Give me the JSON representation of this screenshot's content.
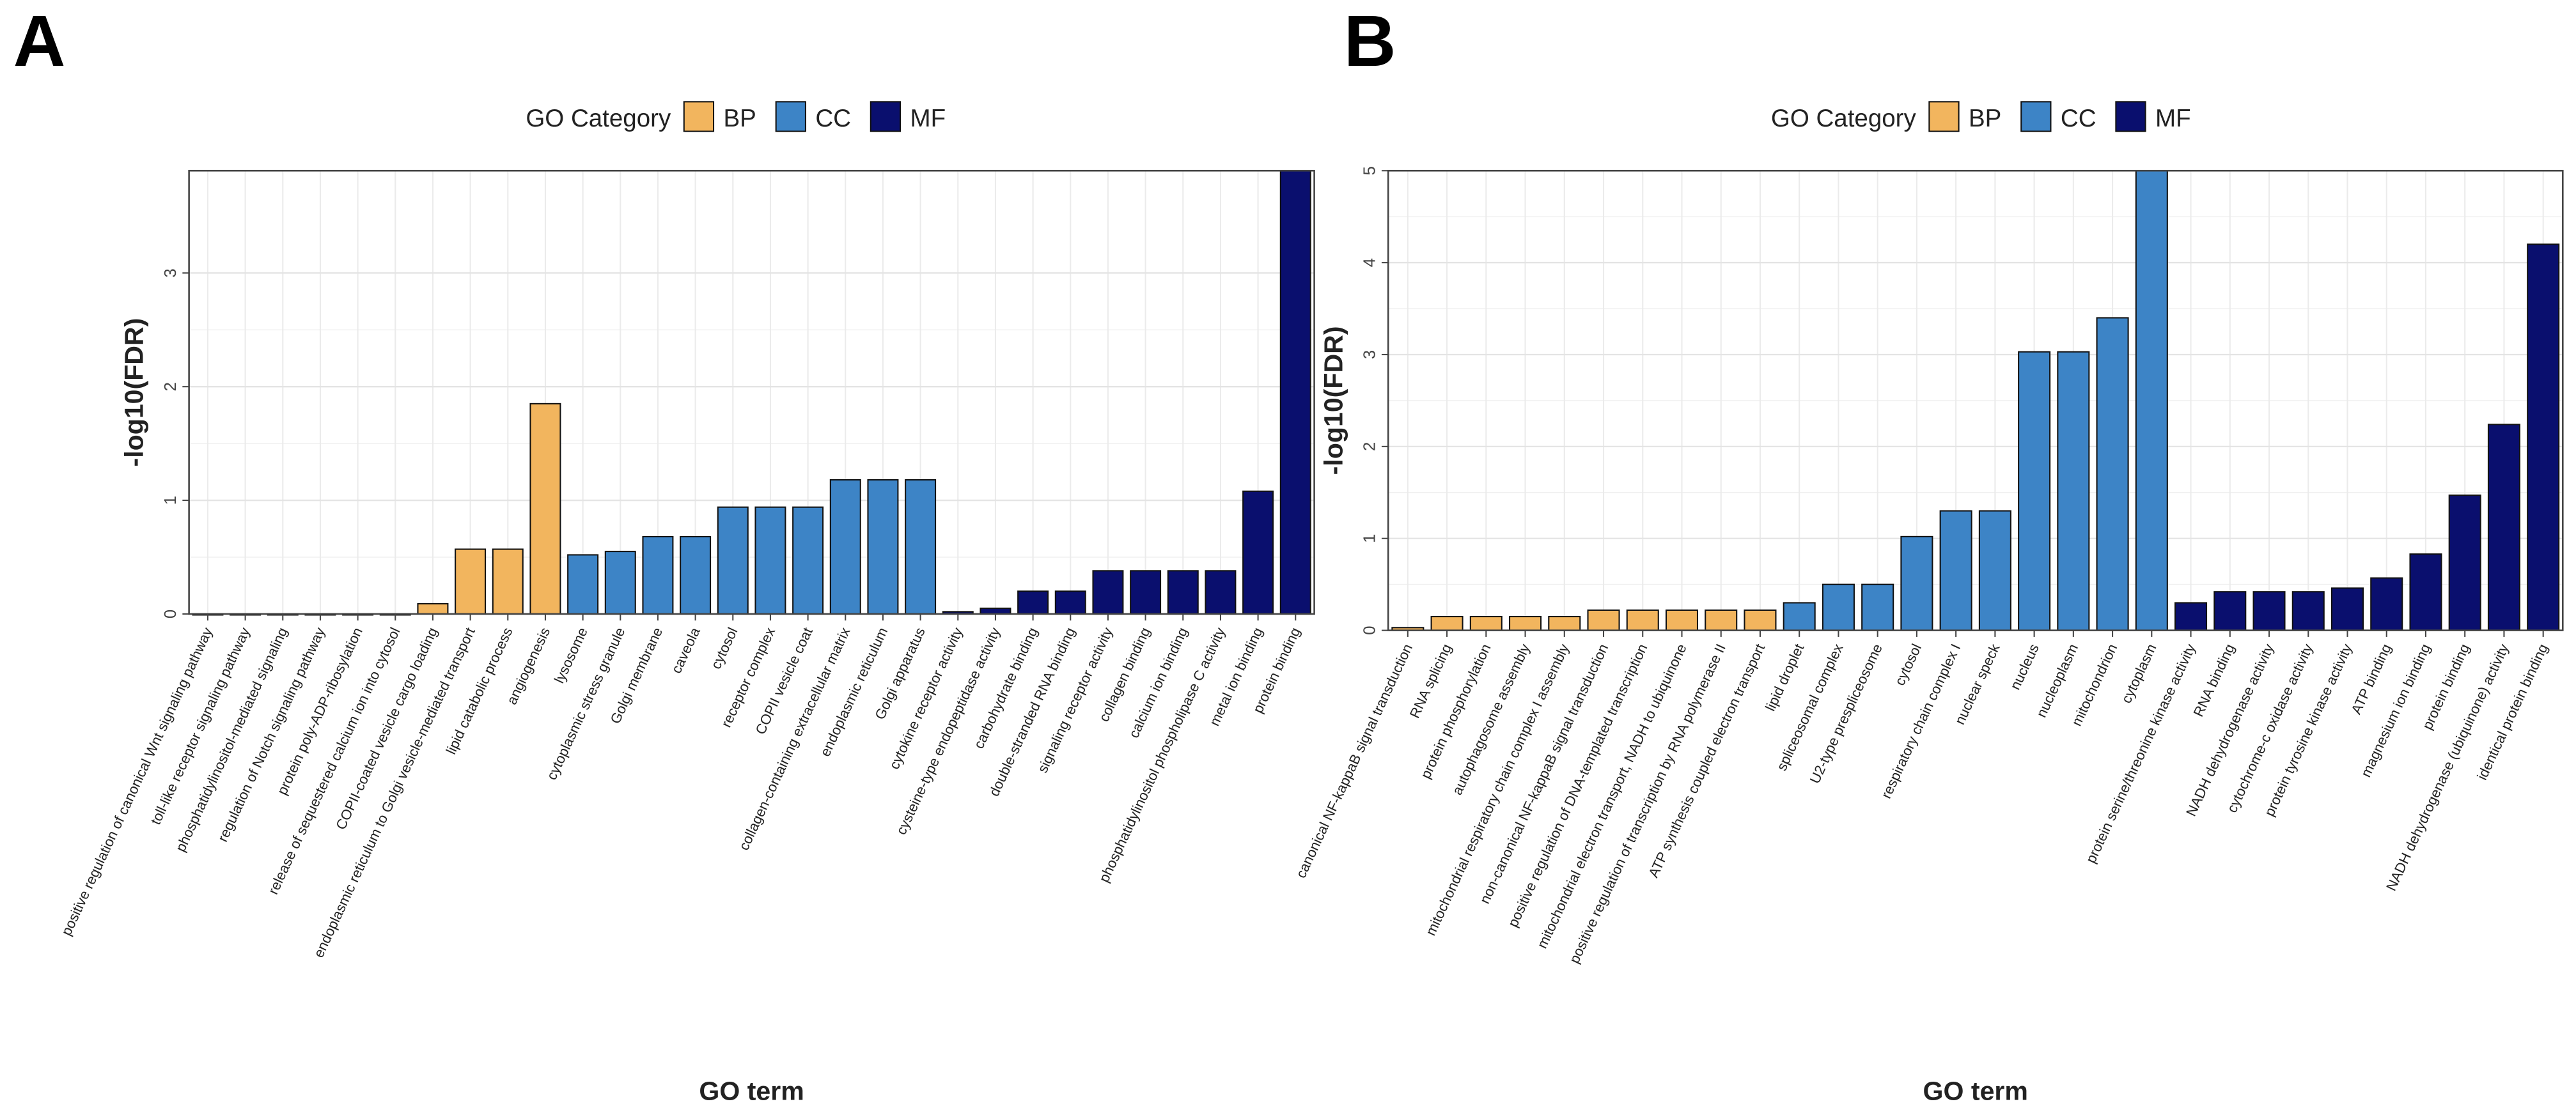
{
  "chart_data": [
    {
      "type": "bar",
      "panel_label": "A",
      "x_label": "GO term",
      "y_label": "-log10(FDR)",
      "legend_title": "GO Category",
      "categories": [
        "positive regulation of canonical Wnt signaling pathway",
        "toll-like receptor signaling pathway",
        "phosphatidylinositol-mediated signaling",
        "regulation of Notch signaling pathway",
        "protein poly-ADP-ribosylation",
        "release of sequestered calcium ion into cytosol",
        "COPII-coated vesicle cargo loading",
        "endoplasmic reticulum to Golgi vesicle-mediated transport",
        "lipid catabolic process",
        "angiogenesis",
        "lysosome",
        "cytoplasmic stress granule",
        "Golgi membrane",
        "caveola",
        "cytosol",
        "receptor complex",
        "COPII vesicle coat",
        "collagen-containing extracellular matrix",
        "endoplasmic reticulum",
        "Golgi apparatus",
        "cytokine receptor activity",
        "cysteine-type endopeptidase activity",
        "carbohydrate binding",
        "double-stranded RNA binding",
        "signaling receptor activity",
        "collagen binding",
        "calcium ion binding",
        "phosphatidylinositol phospholipase C activity",
        "metal ion binding",
        "protein binding"
      ],
      "series": [
        {
          "name": "BP",
          "color": "#f2b55e",
          "values": [
            0,
            0,
            0,
            0,
            0,
            0,
            0.09,
            0.57,
            0.57,
            1.85,
            null,
            null,
            null,
            null,
            null,
            null,
            null,
            null,
            null,
            null,
            null,
            null,
            null,
            null,
            null,
            null,
            null,
            null,
            null,
            null
          ]
        },
        {
          "name": "CC",
          "color": "#3d84c6",
          "values": [
            null,
            null,
            null,
            null,
            null,
            null,
            null,
            null,
            null,
            null,
            0.52,
            0.55,
            0.68,
            0.68,
            0.94,
            0.94,
            0.94,
            1.18,
            1.18,
            1.18,
            null,
            null,
            null,
            null,
            null,
            null,
            null,
            null,
            null,
            null
          ]
        },
        {
          "name": "MF",
          "color": "#0a0f6e",
          "values": [
            null,
            null,
            null,
            null,
            null,
            null,
            null,
            null,
            null,
            null,
            null,
            null,
            null,
            null,
            null,
            null,
            null,
            null,
            null,
            null,
            0.02,
            0.05,
            0.2,
            0.2,
            0.38,
            0.38,
            0.38,
            0.38,
            1.08,
            3.9
          ]
        }
      ],
      "ylim": [
        0,
        3.9
      ],
      "yticks": [
        0,
        1,
        2,
        3
      ],
      "grid": true
    },
    {
      "type": "bar",
      "panel_label": "B",
      "x_label": "GO term",
      "y_label": "-log10(FDR)",
      "legend_title": "GO Category",
      "categories": [
        "canonical NF-kappaB signal transduction",
        "RNA splicing",
        "protein phosphorylation",
        "autophagosome assembly",
        "mitochondrial respiratory chain complex I assembly",
        "non-canonical NF-kappaB signal transduction",
        "positive regulation of DNA-templated transcription",
        "mitochondrial electron transport, NADH to ubiquinone",
        "positive regulation of transcription by RNA polymerase II",
        "ATP synthesis coupled electron transport",
        "lipid droplet",
        "spliceosomal complex",
        "U2-type prespliceosome",
        "cytosol",
        "respiratory chain complex I",
        "nuclear speck",
        "nucleus",
        "nucleoplasm",
        "mitochondrion",
        "cytoplasm",
        "protein serine/threonine kinase activity",
        "RNA binding",
        "NADH dehydrogenase activity",
        "cytochrome-c oxidase activity",
        "protein tyrosine kinase activity",
        "ATP binding",
        "magnesium ion binding",
        "protein binding",
        "NADH dehydrogenase (ubiquinone) activity",
        "identical protein binding"
      ],
      "series": [
        {
          "name": "BP",
          "color": "#f2b55e",
          "values": [
            0.03,
            0.15,
            0.15,
            0.15,
            0.15,
            0.22,
            0.22,
            0.22,
            0.22,
            0.22,
            null,
            null,
            null,
            null,
            null,
            null,
            null,
            null,
            null,
            null,
            null,
            null,
            null,
            null,
            null,
            null,
            null,
            null,
            null,
            null
          ]
        },
        {
          "name": "CC",
          "color": "#3d84c6",
          "values": [
            null,
            null,
            null,
            null,
            null,
            null,
            null,
            null,
            null,
            null,
            0.3,
            0.5,
            0.5,
            1.02,
            1.3,
            1.3,
            3.03,
            3.03,
            3.4,
            5,
            null,
            null,
            null,
            null,
            null,
            null,
            null,
            null,
            null,
            null
          ]
        },
        {
          "name": "MF",
          "color": "#0a0f6e",
          "values": [
            null,
            null,
            null,
            null,
            null,
            null,
            null,
            null,
            null,
            null,
            null,
            null,
            null,
            null,
            null,
            null,
            null,
            null,
            null,
            null,
            0.3,
            0.42,
            0.42,
            0.42,
            0.46,
            0.57,
            0.83,
            1.47,
            2.24,
            4.2
          ]
        }
      ],
      "ylim": [
        0,
        5
      ],
      "yticks": [
        0,
        1,
        2,
        3,
        4,
        5
      ],
      "grid": true
    }
  ]
}
